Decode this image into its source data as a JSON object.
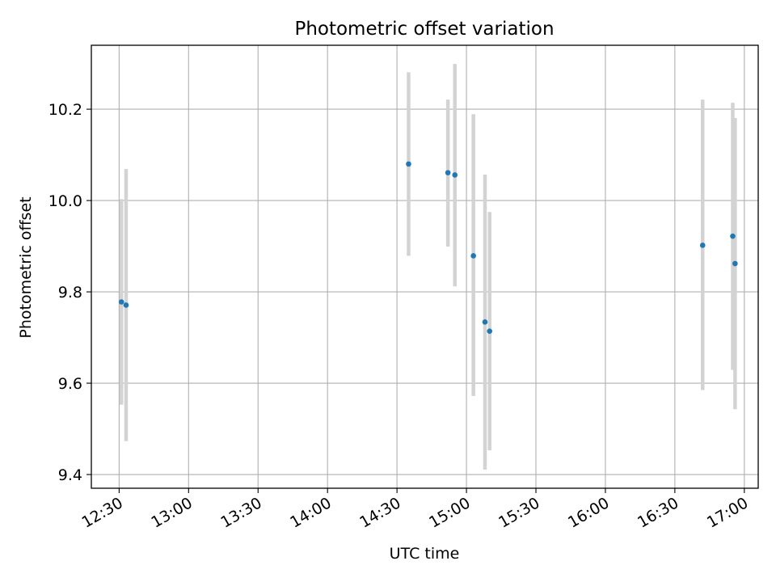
{
  "chart_data": {
    "type": "scatter",
    "title": "Photometric offset variation",
    "xlabel": "UTC time",
    "ylabel": "Photometric offset",
    "x_ticks": [
      "12:30",
      "13:00",
      "13:30",
      "14:00",
      "14:30",
      "15:00",
      "15:30",
      "16:00",
      "16:30",
      "17:00"
    ],
    "x_tick_minutes": [
      750,
      780,
      810,
      840,
      870,
      900,
      930,
      960,
      990,
      1020
    ],
    "y_ticks": [
      9.4,
      9.6,
      9.8,
      10.0,
      10.2
    ],
    "y_tick_labels": [
      "9.4",
      "9.6",
      "9.8",
      "10.0",
      "10.2"
    ],
    "xlim": [
      "12:18",
      "17:06"
    ],
    "ylim": [
      9.37,
      10.34
    ],
    "grid": true,
    "marker_color": "#1f77b4",
    "errorbar_color": "#d3d3d3",
    "series": [
      {
        "points": [
          {
            "x": "12:31",
            "y": 9.778,
            "ylow": 9.553,
            "yhigh": 10.003
          },
          {
            "x": "12:33",
            "y": 9.771,
            "ylow": 9.473,
            "yhigh": 10.069
          },
          {
            "x": "14:35",
            "y": 10.08,
            "ylow": 9.879,
            "yhigh": 10.281
          },
          {
            "x": "14:52",
            "y": 10.061,
            "ylow": 9.899,
            "yhigh": 10.221
          },
          {
            "x": "14:55",
            "y": 10.056,
            "ylow": 9.812,
            "yhigh": 10.299
          },
          {
            "x": "15:03",
            "y": 9.879,
            "ylow": 9.572,
            "yhigh": 10.189
          },
          {
            "x": "15:08",
            "y": 9.734,
            "ylow": 9.411,
            "yhigh": 10.057
          },
          {
            "x": "15:10",
            "y": 9.714,
            "ylow": 9.453,
            "yhigh": 9.975
          },
          {
            "x": "16:42",
            "y": 9.902,
            "ylow": 9.585,
            "yhigh": 10.221
          },
          {
            "x": "16:55",
            "y": 9.922,
            "ylow": 9.629,
            "yhigh": 10.214
          },
          {
            "x": "16:56",
            "y": 9.862,
            "ylow": 9.543,
            "yhigh": 10.181
          }
        ]
      }
    ]
  }
}
